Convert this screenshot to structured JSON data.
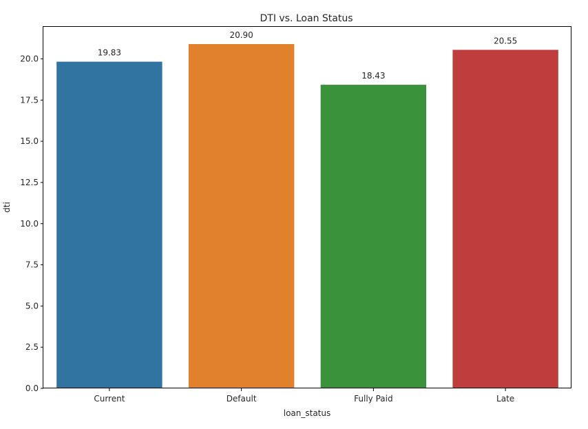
{
  "chart_data": {
    "type": "bar",
    "title": "DTI vs. Loan Status",
    "xlabel": "loan_status",
    "ylabel": "dti",
    "categories": [
      "Current",
      "Default",
      "Fully Paid",
      "Late"
    ],
    "values": [
      19.83,
      20.9,
      18.43,
      20.55
    ],
    "value_labels": [
      "19.83",
      "20.90",
      "18.43",
      "20.55"
    ],
    "colors": [
      "#3274a1",
      "#e1812c",
      "#3a923a",
      "#c03d3e"
    ],
    "ylim": [
      0,
      21.945
    ],
    "yticks": [
      0.0,
      2.5,
      5.0,
      7.5,
      10.0,
      12.5,
      15.0,
      17.5,
      20.0
    ],
    "ytick_labels": [
      "0.0",
      "2.5",
      "5.0",
      "7.5",
      "10.0",
      "12.5",
      "15.0",
      "17.5",
      "20.0"
    ],
    "grid": false,
    "legend": "none"
  }
}
